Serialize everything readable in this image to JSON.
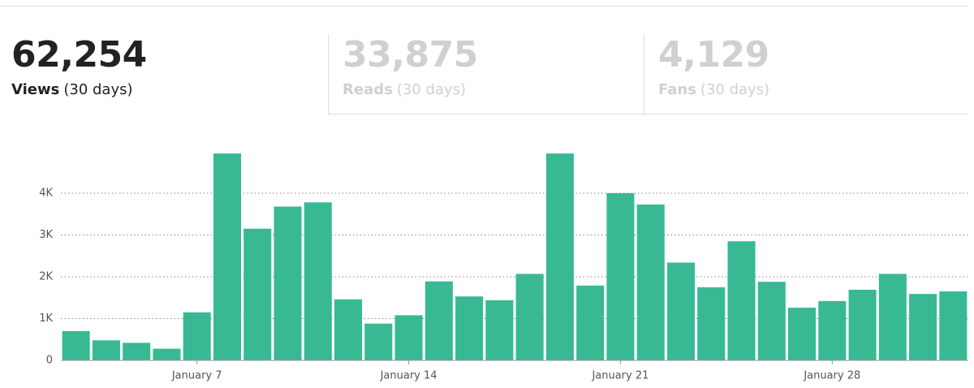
{
  "stats": [
    {
      "value": "62,254",
      "label": "Views",
      "period": "(30 days)"
    },
    {
      "value": "33,875",
      "label": "Reads",
      "period": "(30 days)"
    },
    {
      "value": "4,129",
      "label": "Fans",
      "period": "(30 days)"
    }
  ],
  "chart_data": {
    "type": "bar",
    "categories": [
      null,
      null,
      null,
      null,
      "January 7",
      null,
      null,
      null,
      null,
      null,
      null,
      "January 14",
      null,
      null,
      null,
      null,
      null,
      null,
      "January 21",
      null,
      null,
      null,
      null,
      null,
      null,
      "January 28",
      null,
      null,
      null,
      null
    ],
    "values": [
      700,
      480,
      420,
      280,
      1150,
      4950,
      3150,
      3680,
      3780,
      1460,
      880,
      1080,
      1890,
      1530,
      1440,
      2070,
      4950,
      1790,
      4000,
      3730,
      2340,
      1750,
      2850,
      1880,
      1260,
      1420,
      1690,
      2070,
      1590,
      1650
    ],
    "color": "#38b994",
    "ylim": [
      0,
      5000
    ],
    "yticks": [
      0,
      {
        "value": 1000,
        "label": "1K"
      },
      {
        "value": 2000,
        "label": "2K"
      },
      {
        "value": 3000,
        "label": "3K"
      },
      {
        "value": 4000,
        "label": "4K"
      }
    ],
    "grid": true
  }
}
